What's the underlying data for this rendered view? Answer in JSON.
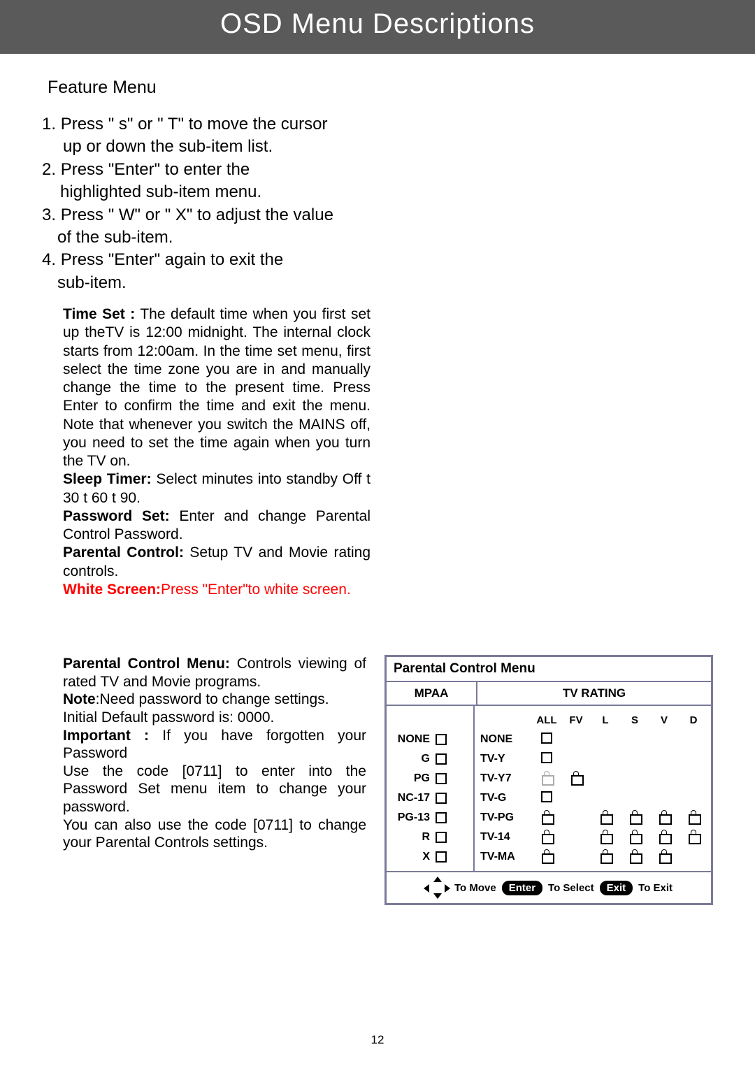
{
  "header": "OSD Menu Descriptions",
  "section_title": "Feature Menu",
  "steps": [
    {
      "num": "1.",
      "l1": "Press \" s\" or \" T\" to move the cursor",
      "l2": "up or down the sub-item list."
    },
    {
      "num": "2.",
      "l1": "Press \"Enter\" to enter the",
      "l2": "highlighted sub-item menu."
    },
    {
      "num": "3.",
      "l1": "Press \" W\" or \" X\" to adjust the value",
      "l2": "of the sub-item."
    },
    {
      "num": "4.",
      "l1": "Press \"Enter\" again to exit the",
      "l2": "sub-item."
    }
  ],
  "desc": {
    "time_set_label": "Time Set :",
    "time_set_body": " The default time when you first set up theTV is 12:00 midnight. The internal clock starts from 12:00am. In the time set menu, first select the time zone you are in and manually change the time to the present time. Press Enter to confirm the time and exit the menu. Note that whenever you switch the MAINS off, you need to set the time again when you turn the TV on.",
    "sleep_label": "Sleep Timer:",
    "sleep_body": " Select minutes into standby Off  t  30  t  60  t  90.",
    "password_label": "Password Set:",
    "password_body": " Enter and change Parental Control Password.",
    "parental_label": "Parental Control:",
    "parental_body": " Setup TV and Movie rating controls.",
    "white_label": "White Screen:",
    "white_body": "Press \"Enter\"to white screen."
  },
  "parental_text": {
    "title_label": "Parental Control Menu:",
    "title_body": " Controls viewing of rated TV and Movie programs.",
    "note_label": "Note",
    "note_body": ":Need password to change settings.",
    "default_pw": "Initial Default password is: 0000.",
    "important_label": "Important :",
    "important_body": " If you have forgotten your Password",
    "code1": "Use the code [0711] to enter into the Password Set menu item to change your password.",
    "code2": "You can also use the code [0711] to change your Parental Controls settings."
  },
  "menu": {
    "title": "Parental Control Menu",
    "mpaa_header": "MPAA",
    "tv_header": "TV RATING",
    "mpaa": [
      "NONE",
      "G",
      "PG",
      "NC-17",
      "PG-13",
      "R",
      "X"
    ],
    "tv_cols": [
      "ALL",
      "FV",
      "L",
      "S",
      "V",
      "D"
    ],
    "tv_ratings": [
      "NONE",
      "TV-Y",
      "TV-Y7",
      "TV-G",
      "TV-PG",
      "TV-14",
      "TV-MA"
    ],
    "tv_cells": {
      "NONE": [
        "chk",
        "",
        "",
        "",
        "",
        ""
      ],
      "TV-Y": [
        "chk",
        "",
        "",
        "",
        "",
        ""
      ],
      "TV-Y7": [
        "lockg",
        "lock",
        "",
        "",
        "",
        ""
      ],
      "TV-G": [
        "chk",
        "",
        "",
        "",
        "",
        ""
      ],
      "TV-PG": [
        "lock",
        "",
        "lock",
        "lock",
        "lock",
        "lock"
      ],
      "TV-14": [
        "lock",
        "",
        "lock",
        "lock",
        "lock",
        "lock"
      ],
      "TV-MA": [
        "lock",
        "",
        "lock",
        "lock",
        "lock",
        ""
      ]
    },
    "footer": {
      "to_move": "To Move",
      "enter": "Enter",
      "to_select": "To Select",
      "exit": "Exit",
      "to_exit": "To Exit"
    }
  },
  "page_num": "12",
  "colors": {
    "header_bg": "#5a5a5a",
    "red": "#ff0000",
    "border": "#7a7a9a"
  }
}
